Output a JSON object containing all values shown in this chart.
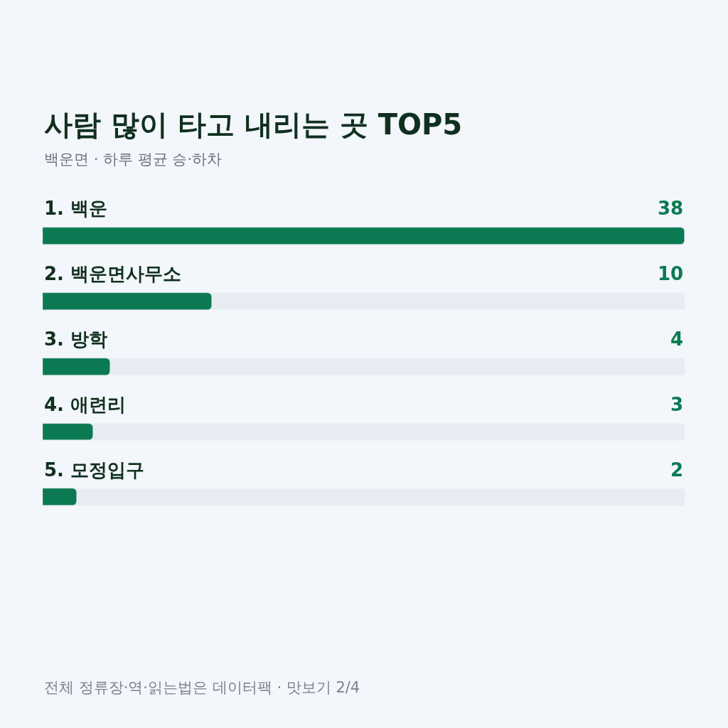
{
  "chart_data": {
    "type": "bar",
    "orientation": "horizontal",
    "title": "사람 많이 타고 내리는 곳 TOP5",
    "subtitle": "백운면 · 하루 평균 승·하차",
    "categories": [
      "1. 백운",
      "2. 백운면사무소",
      "3. 방학",
      "4. 애련리",
      "5. 모정입구"
    ],
    "values": [
      38,
      10,
      4,
      3,
      2
    ],
    "color": "#0b7a52",
    "xlim": [
      0,
      38
    ],
    "data_labels": true,
    "annotations": [
      "전체 정류장·역·읽는법은 데이터팩 · 맛보기 2/4"
    ]
  }
}
